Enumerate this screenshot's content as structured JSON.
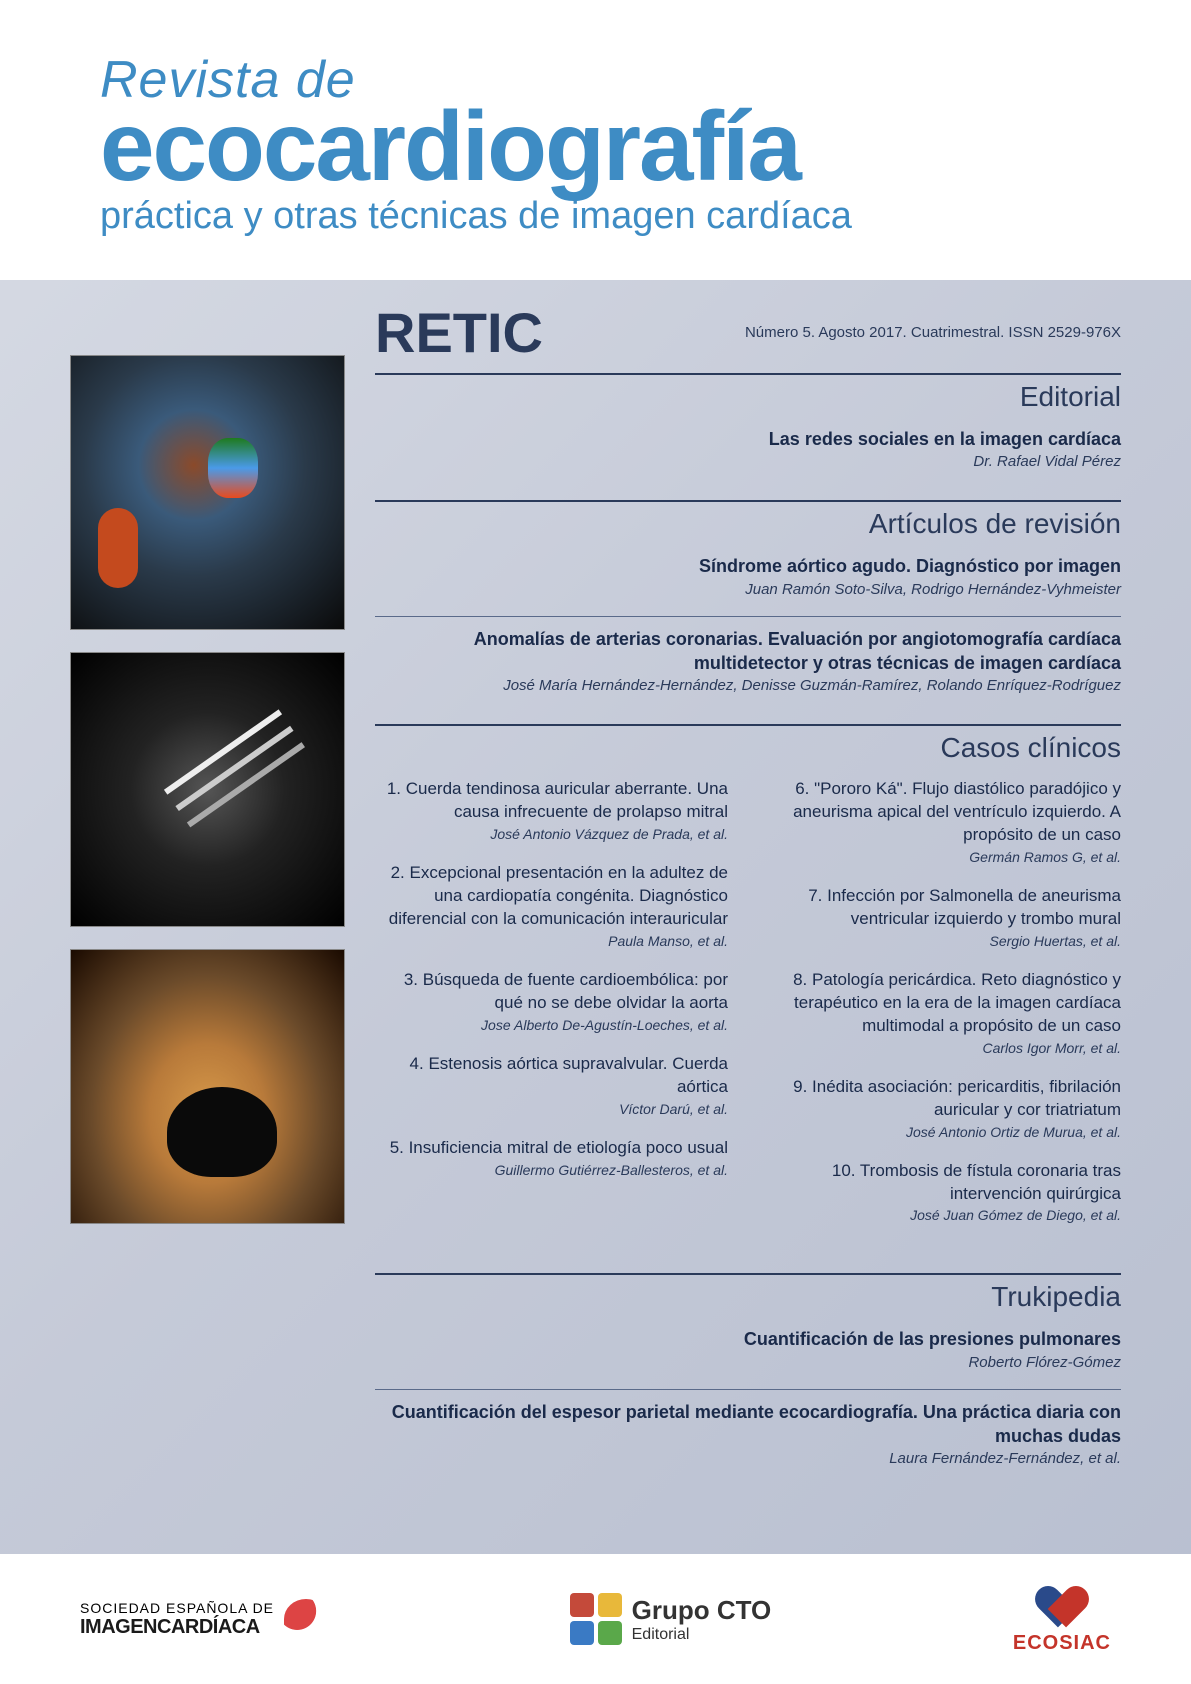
{
  "header": {
    "title_line1": "Revista de",
    "title_line2": "ecocardiografía",
    "subtitle": "práctica y otras técnicas de imagen cardíaca"
  },
  "retic": "RETIC",
  "issue_info": "Número 5. Agosto 2017. Cuatrimestral. ISSN 2529-976X",
  "sections": {
    "editorial": {
      "heading": "Editorial",
      "items": [
        {
          "title": "Las redes sociales en la imagen cardíaca",
          "author": "Dr. Rafael Vidal Pérez"
        }
      ]
    },
    "revision": {
      "heading": "Artículos de revisión",
      "items": [
        {
          "title": "Síndrome aórtico agudo. Diagnóstico por imagen",
          "author": "Juan Ramón Soto-Silva, Rodrigo Hernández-Vyhmeister"
        },
        {
          "title": "Anomalías de arterias coronarias. Evaluación por angiotomografía cardíaca multidetector y otras técnicas de imagen cardíaca",
          "author": "José María Hernández-Hernández, Denisse Guzmán-Ramírez, Rolando Enríquez-Rodríguez"
        }
      ]
    },
    "casos": {
      "heading": "Casos clínicos",
      "left": [
        {
          "title": "1. Cuerda tendinosa auricular aberrante. Una causa infrecuente de prolapso mitral",
          "author": "José Antonio Vázquez de Prada, et al."
        },
        {
          "title": "2. Excepcional presentación en la adultez de una cardiopatía congénita. Diagnóstico diferencial con la comunicación interauricular",
          "author": "Paula Manso, et al."
        },
        {
          "title": "3. Búsqueda de fuente cardioembólica: por qué no se debe olvidar la aorta",
          "author": "Jose Alberto De-Agustín-Loeches, et al."
        },
        {
          "title": "4. Estenosis aórtica supravalvular. Cuerda aórtica",
          "author": "Víctor Darú, et al."
        },
        {
          "title": "5. Insuficiencia mitral de etiología poco usual",
          "author": "Guillermo Gutiérrez-Ballesteros, et al."
        }
      ],
      "right": [
        {
          "title": "6. \"Pororo Ká\". Flujo diastólico paradójico y aneurisma apical del ventrículo izquierdo. A propósito de un caso",
          "author": "Germán Ramos G, et al."
        },
        {
          "title": "7. Infección por Salmonella de aneurisma ventricular izquierdo y trombo mural",
          "author": "Sergio Huertas, et al."
        },
        {
          "title": "8. Patología pericárdica. Reto diagnóstico y terapéutico en la era de la imagen cardíaca multimodal a propósito de un caso",
          "author": "Carlos Igor Morr, et al."
        },
        {
          "title": "9. Inédita asociación: pericarditis, fibrilación auricular y cor triatriatum",
          "author": "José Antonio Ortiz de Murua, et al."
        },
        {
          "title": "10. Trombosis de fístula coronaria tras intervención quirúrgica",
          "author": "José Juan Gómez de Diego, et al."
        }
      ]
    },
    "trukipedia": {
      "heading": "Trukipedia",
      "items": [
        {
          "title": "Cuantificación de las presiones pulmonares",
          "author": "Roberto Flórez-Gómez"
        },
        {
          "title": "Cuantificación del espesor parietal mediante ecocardiografía. Una práctica diaria con muchas dudas",
          "author": "Laura Fernández-Fernández, et al."
        }
      ]
    }
  },
  "footer": {
    "seic_l1": "SOCIEDAD ESPAÑOLA DE",
    "seic_l2": "IMAGENCARDÍACA",
    "cto_l1": "Grupo CTO",
    "cto_l2": "Editorial",
    "ecosiac": "ECOSIAC"
  },
  "colors": {
    "brand_blue": "#3e8cc4",
    "text_dark": "#1a2a4a",
    "rule": "#2a3a5a",
    "bg_grad_start": "#d8dce5",
    "bg_grad_end": "#b8bfd0"
  }
}
